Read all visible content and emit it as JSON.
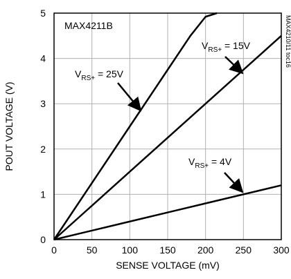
{
  "chart_data": {
    "type": "line",
    "title": "MAX4211B",
    "xlabel": "SENSE VOLTAGE (mV)",
    "ylabel": "POUT VOLTAGE (V)",
    "xlim": [
      0,
      300
    ],
    "ylim": [
      0,
      5
    ],
    "x_ticks": [
      "0",
      "50",
      "100",
      "150",
      "200",
      "250",
      "300"
    ],
    "y_ticks": [
      "0",
      "1",
      "2",
      "3",
      "4",
      "5"
    ],
    "grid": true,
    "side_note": "MAX4210/11 toc16",
    "series": [
      {
        "name": "V_RS+ = 25V",
        "label_main": "V",
        "label_sub": "RS+",
        "label_rest": " = 25V",
        "x": [
          0,
          50,
          100,
          150,
          180,
          200,
          215
        ],
        "y": [
          0,
          1.25,
          2.5,
          3.75,
          4.5,
          4.92,
          5.0
        ]
      },
      {
        "name": "V_RS+ = 15V",
        "label_main": "V",
        "label_sub": "RS+",
        "label_rest": " = 15V",
        "x": [
          0,
          100,
          200,
          300
        ],
        "y": [
          0,
          1.5,
          3.0,
          4.5
        ]
      },
      {
        "name": "V_RS+ = 4V",
        "label_main": "V",
        "label_sub": "RS+",
        "label_rest": " = 4V",
        "x": [
          0,
          100,
          200,
          300
        ],
        "y": [
          0,
          0.4,
          0.8,
          1.2
        ]
      }
    ]
  }
}
